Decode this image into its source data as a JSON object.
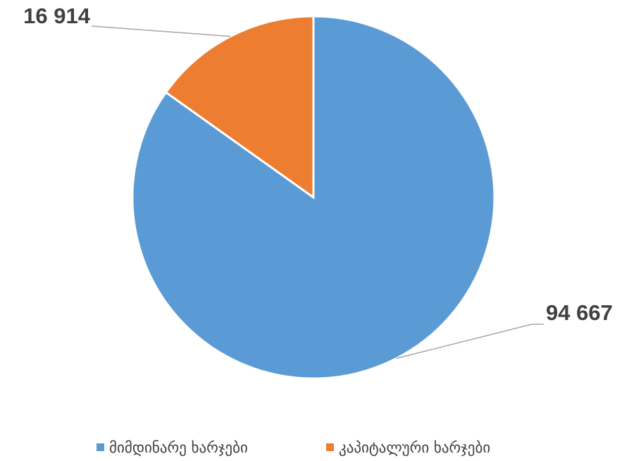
{
  "chart_data": {
    "type": "pie",
    "categories": [
      "მიმდინარე ხარჯები",
      "კაპიტალური ხარჯები"
    ],
    "values": [
      94667,
      16914
    ],
    "value_labels": [
      "94 667",
      "16 914"
    ],
    "colors": [
      "#5b9bd5",
      "#ed7d31"
    ],
    "legend": "bottom"
  }
}
